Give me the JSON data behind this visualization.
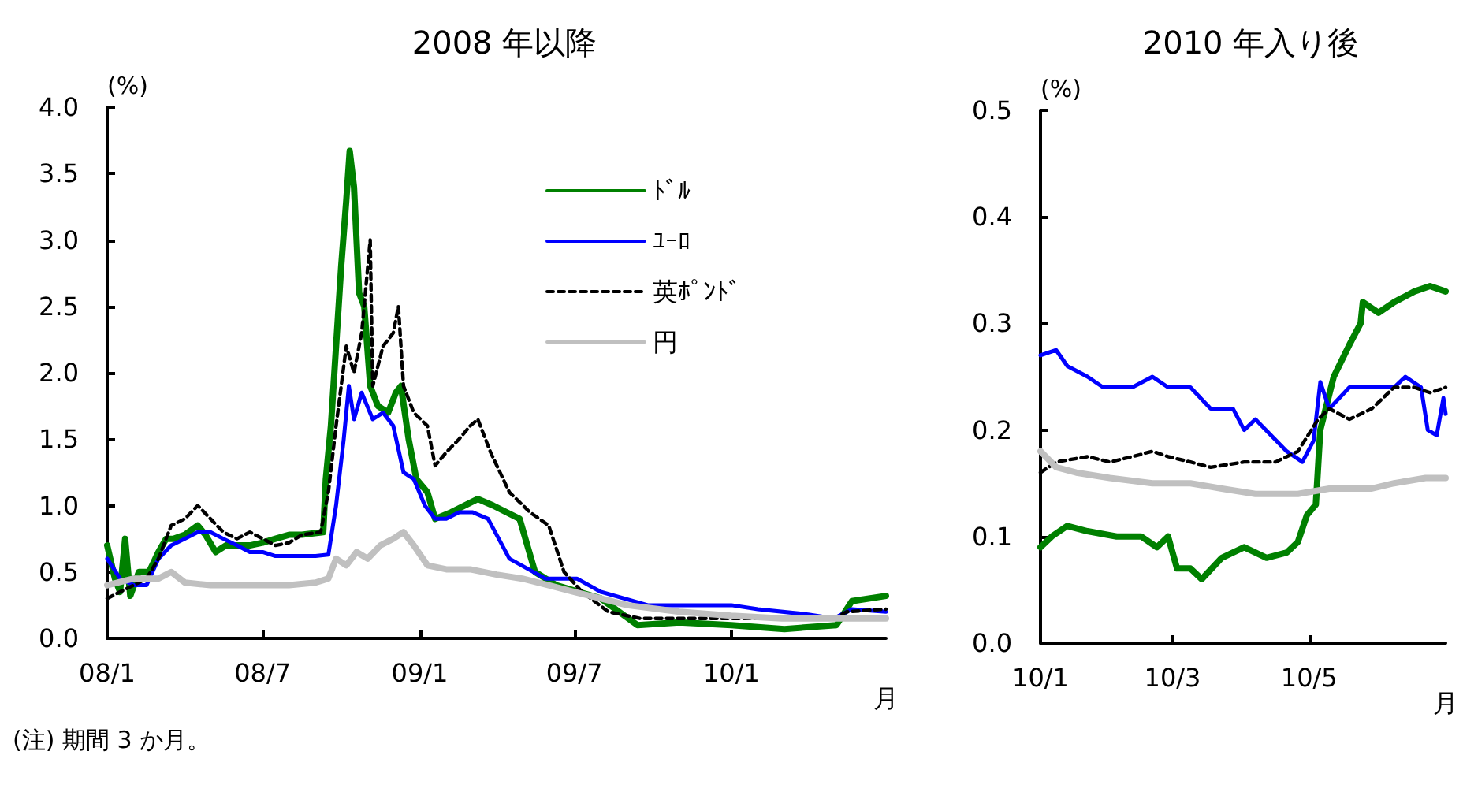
{
  "chart_data": [
    {
      "type": "line",
      "title": "2008 年以降",
      "ylabel": "(%)",
      "xlabel": "月",
      "annotations": [
        "(注) 期間 3 か月。"
      ],
      "xlim": [
        "2008-01-01",
        "2010-07-01"
      ],
      "xticks": [
        {
          "value": "2008-01-01",
          "label": "08/1"
        },
        {
          "value": "2008-07-01",
          "label": "08/7"
        },
        {
          "value": "2009-01-01",
          "label": "09/1"
        },
        {
          "value": "2009-07-01",
          "label": "09/7"
        },
        {
          "value": "2010-01-01",
          "label": "10/1"
        }
      ],
      "ylim": [
        0,
        4
      ],
      "yticks": [
        {
          "value": 0,
          "label": "0.0"
        },
        {
          "value": 0.5,
          "label": "0.5"
        },
        {
          "value": 1,
          "label": "1.0"
        },
        {
          "value": 1.5,
          "label": "1.5"
        },
        {
          "value": 2,
          "label": "2.0"
        },
        {
          "value": 2.5,
          "label": "2.5"
        },
        {
          "value": 3,
          "label": "3.0"
        },
        {
          "value": 3.5,
          "label": "3.5"
        },
        {
          "value": 4,
          "label": "4.0"
        }
      ],
      "grid": false,
      "legend": "top right",
      "marker": "none",
      "series": [
        {
          "name": "ﾄﾞﾙ",
          "color": "#008000",
          "line_style": "solid",
          "x": [
            "2008-01-01",
            "2008-01-10",
            "2008-01-16",
            "2008-01-22",
            "2008-01-28",
            "2008-02-07",
            "2008-02-19",
            "2008-03-01",
            "2008-03-10",
            "2008-03-19",
            "2008-04-01",
            "2008-04-16",
            "2008-04-25",
            "2008-05-07",
            "2008-05-19",
            "2008-06-01",
            "2008-06-16",
            "2008-07-01",
            "2008-07-16",
            "2008-08-01",
            "2008-08-16",
            "2008-09-10",
            "2008-09-13",
            "2008-09-19",
            "2008-09-25",
            "2008-10-01",
            "2008-10-07",
            "2008-10-11",
            "2008-10-16",
            "2008-10-22",
            "2008-10-28",
            "2008-11-04",
            "2008-11-13",
            "2008-11-25",
            "2008-12-04",
            "2008-12-10",
            "2008-12-19",
            "2008-12-28",
            "2009-01-10",
            "2009-01-19",
            "2009-02-07",
            "2009-03-10",
            "2009-03-28",
            "2009-04-28",
            "2009-05-16",
            "2009-06-10",
            "2009-08-01",
            "2009-09-13",
            "2009-11-01",
            "2010-01-01",
            "2010-03-04",
            "2010-05-04",
            "2010-05-22",
            "2010-07-01"
          ],
          "values": [
            0.7,
            0.45,
            0.35,
            0.75,
            0.32,
            0.5,
            0.5,
            0.65,
            0.75,
            0.75,
            0.78,
            0.85,
            0.78,
            0.65,
            0.7,
            0.7,
            0.7,
            0.72,
            0.75,
            0.78,
            0.78,
            0.8,
            1.2,
            1.6,
            2.2,
            2.8,
            3.3,
            3.67,
            3.4,
            2.6,
            2.5,
            1.9,
            1.75,
            1.7,
            1.85,
            1.9,
            1.5,
            1.2,
            1.1,
            0.9,
            0.95,
            1.05,
            1,
            0.9,
            0.5,
            0.4,
            0.3,
            0.1,
            0.12,
            0.1,
            0.07,
            0.1,
            0.28,
            0.32
          ]
        },
        {
          "name": "ﾕｰﾛ",
          "color": "#0000ff",
          "line_style": "solid",
          "x": [
            "2008-01-01",
            "2008-01-16",
            "2008-02-01",
            "2008-02-16",
            "2008-03-01",
            "2008-03-16",
            "2008-04-01",
            "2008-04-16",
            "2008-05-01",
            "2008-05-16",
            "2008-06-01",
            "2008-06-16",
            "2008-07-01",
            "2008-07-16",
            "2008-08-01",
            "2008-09-01",
            "2008-09-16",
            "2008-09-25",
            "2008-10-04",
            "2008-10-10",
            "2008-10-16",
            "2008-10-25",
            "2008-11-07",
            "2008-11-19",
            "2008-12-01",
            "2008-12-13",
            "2008-12-25",
            "2009-01-07",
            "2009-01-19",
            "2009-02-01",
            "2009-02-16",
            "2009-03-04",
            "2009-03-22",
            "2009-04-16",
            "2009-05-28",
            "2009-07-04",
            "2009-08-01",
            "2009-09-25",
            "2009-11-25",
            "2010-01-01",
            "2010-02-01",
            "2010-04-01",
            "2010-05-01",
            "2010-05-22",
            "2010-07-01"
          ],
          "values": [
            0.6,
            0.45,
            0.4,
            0.4,
            0.6,
            0.7,
            0.75,
            0.8,
            0.8,
            0.75,
            0.7,
            0.65,
            0.65,
            0.62,
            0.62,
            0.62,
            0.63,
            1,
            1.5,
            1.9,
            1.65,
            1.85,
            1.65,
            1.7,
            1.6,
            1.25,
            1.2,
            1,
            0.9,
            0.9,
            0.95,
            0.95,
            0.9,
            0.6,
            0.45,
            0.45,
            0.35,
            0.25,
            0.25,
            0.25,
            0.22,
            0.18,
            0.15,
            0.22,
            0.2
          ]
        },
        {
          "name": "英ﾎﾟﾝﾄﾞ",
          "color": "#000000",
          "line_style": "dashed",
          "x": [
            "2008-01-01",
            "2008-01-16",
            "2008-02-01",
            "2008-02-16",
            "2008-03-01",
            "2008-03-16",
            "2008-04-01",
            "2008-04-16",
            "2008-05-01",
            "2008-05-16",
            "2008-06-01",
            "2008-06-16",
            "2008-07-01",
            "2008-07-16",
            "2008-08-01",
            "2008-08-16",
            "2008-09-07",
            "2008-09-16",
            "2008-09-25",
            "2008-10-07",
            "2008-10-16",
            "2008-10-25",
            "2008-11-04",
            "2008-11-07",
            "2008-11-19",
            "2008-12-01",
            "2008-12-07",
            "2008-12-13",
            "2008-12-25",
            "2009-01-10",
            "2009-01-19",
            "2009-02-01",
            "2009-02-16",
            "2009-03-01",
            "2009-03-10",
            "2009-03-25",
            "2009-04-16",
            "2009-05-10",
            "2009-06-01",
            "2009-06-19",
            "2009-07-10",
            "2009-08-10",
            "2009-09-16",
            "2009-11-01",
            "2010-01-01",
            "2010-03-01",
            "2010-05-01",
            "2010-05-16",
            "2010-07-01"
          ],
          "values": [
            0.3,
            0.35,
            0.4,
            0.45,
            0.6,
            0.85,
            0.9,
            1,
            0.9,
            0.8,
            0.75,
            0.8,
            0.75,
            0.7,
            0.72,
            0.78,
            0.8,
            1.1,
            1.6,
            2.2,
            2,
            2.3,
            3,
            1.9,
            2.2,
            2.3,
            2.5,
            1.9,
            1.7,
            1.6,
            1.3,
            1.4,
            1.5,
            1.6,
            1.65,
            1.4,
            1.1,
            0.95,
            0.85,
            0.5,
            0.35,
            0.2,
            0.15,
            0.15,
            0.15,
            0.15,
            0.15,
            0.2,
            0.22
          ]
        },
        {
          "name": "円",
          "color": "#c0c0c0",
          "line_style": "solid",
          "x": [
            "2008-01-01",
            "2008-02-01",
            "2008-03-01",
            "2008-03-16",
            "2008-04-01",
            "2008-05-01",
            "2008-06-01",
            "2008-07-01",
            "2008-08-01",
            "2008-09-01",
            "2008-09-16",
            "2008-09-25",
            "2008-10-07",
            "2008-10-19",
            "2008-11-01",
            "2008-11-16",
            "2008-12-01",
            "2008-12-13",
            "2008-12-25",
            "2009-01-10",
            "2009-02-01",
            "2009-03-01",
            "2009-04-01",
            "2009-05-01",
            "2009-06-01",
            "2009-07-01",
            "2009-08-01",
            "2009-09-01",
            "2009-11-01",
            "2010-01-01",
            "2010-03-01",
            "2010-05-01",
            "2010-07-01"
          ],
          "values": [
            0.4,
            0.45,
            0.45,
            0.5,
            0.42,
            0.4,
            0.4,
            0.4,
            0.4,
            0.42,
            0.45,
            0.6,
            0.55,
            0.65,
            0.6,
            0.7,
            0.75,
            0.8,
            0.7,
            0.55,
            0.52,
            0.52,
            0.48,
            0.45,
            0.4,
            0.35,
            0.3,
            0.25,
            0.2,
            0.17,
            0.15,
            0.15,
            0.15
          ]
        }
      ]
    },
    {
      "type": "line",
      "title": "2010 年入り後",
      "ylabel": "(%)",
      "xlabel": "月",
      "xlim": [
        "2010-01-01",
        "2010-07-01"
      ],
      "xticks": [
        {
          "value": "2010-01-01",
          "label": "10/1"
        },
        {
          "value": "2010-03-01",
          "label": "10/3"
        },
        {
          "value": "2010-05-01",
          "label": "10/5"
        }
      ],
      "ylim": [
        0,
        0.5
      ],
      "yticks": [
        {
          "value": 0,
          "label": "0.0"
        },
        0.1,
        0.2,
        0.3,
        0.4,
        0.5
      ],
      "grid": false,
      "marker": "none",
      "series": [
        {
          "color": "#008000",
          "line_style": "solid",
          "x": [
            "2010-01-01",
            "2010-01-06",
            "2010-01-13",
            "2010-01-22",
            "2010-02-04",
            "2010-02-15",
            "2010-02-22",
            "2010-02-27",
            "2010-03-03",
            "2010-03-09",
            "2010-03-14",
            "2010-03-23",
            "2010-04-02",
            "2010-04-12",
            "2010-04-21",
            "2010-04-26",
            "2010-04-30",
            "2010-05-04",
            "2010-05-06",
            "2010-05-12",
            "2010-05-19",
            "2010-05-24",
            "2010-05-25",
            "2010-06-01",
            "2010-06-08",
            "2010-06-17",
            "2010-06-24",
            "2010-07-01"
          ],
          "values": [
            0.09,
            0.1,
            0.11,
            0.105,
            0.1,
            0.1,
            0.09,
            0.1,
            0.07,
            0.07,
            0.06,
            0.08,
            0.09,
            0.08,
            0.085,
            0.095,
            0.12,
            0.13,
            0.2,
            0.25,
            0.28,
            0.3,
            0.32,
            0.31,
            0.32,
            0.33,
            0.335,
            0.33
          ]
        },
        {
          "color": "#0000ff",
          "line_style": "solid",
          "x": [
            "2010-01-01",
            "2010-01-08",
            "2010-01-13",
            "2010-01-22",
            "2010-01-29",
            "2010-02-11",
            "2010-02-20",
            "2010-02-27",
            "2010-03-09",
            "2010-03-18",
            "2010-03-28",
            "2010-04-02",
            "2010-04-07",
            "2010-04-21",
            "2010-04-28",
            "2010-05-03",
            "2010-05-06",
            "2010-05-10",
            "2010-05-19",
            "2010-05-29",
            "2010-06-08",
            "2010-06-13",
            "2010-06-20",
            "2010-06-23",
            "2010-06-27",
            "2010-06-30",
            "2010-07-01"
          ],
          "values": [
            0.27,
            0.275,
            0.26,
            0.25,
            0.24,
            0.24,
            0.25,
            0.24,
            0.24,
            0.22,
            0.22,
            0.2,
            0.21,
            0.18,
            0.17,
            0.19,
            0.245,
            0.22,
            0.24,
            0.24,
            0.24,
            0.25,
            0.24,
            0.2,
            0.195,
            0.23,
            0.215
          ]
        },
        {
          "color": "#000000",
          "line_style": "dashed",
          "x": [
            "2010-01-01",
            "2010-01-08",
            "2010-01-22",
            "2010-02-01",
            "2010-02-11",
            "2010-02-20",
            "2010-02-27",
            "2010-03-09",
            "2010-03-18",
            "2010-04-02",
            "2010-04-16",
            "2010-04-26",
            "2010-05-05",
            "2010-05-10",
            "2010-05-19",
            "2010-05-29",
            "2010-06-08",
            "2010-06-17",
            "2010-06-24",
            "2010-07-01"
          ],
          "values": [
            0.16,
            0.17,
            0.175,
            0.17,
            0.175,
            0.18,
            0.175,
            0.17,
            0.165,
            0.17,
            0.17,
            0.18,
            0.21,
            0.22,
            0.21,
            0.22,
            0.24,
            0.24,
            0.235,
            0.24
          ]
        },
        {
          "color": "#c0c0c0",
          "line_style": "solid",
          "x": [
            "2010-01-01",
            "2010-01-08",
            "2010-01-17",
            "2010-02-01",
            "2010-02-20",
            "2010-03-09",
            "2010-03-23",
            "2010-04-07",
            "2010-04-26",
            "2010-05-10",
            "2010-05-29",
            "2010-06-08",
            "2010-06-22",
            "2010-07-01"
          ],
          "values": [
            0.18,
            0.165,
            0.16,
            0.155,
            0.15,
            0.15,
            0.145,
            0.14,
            0.14,
            0.145,
            0.145,
            0.15,
            0.155,
            0.155
          ]
        }
      ]
    }
  ]
}
